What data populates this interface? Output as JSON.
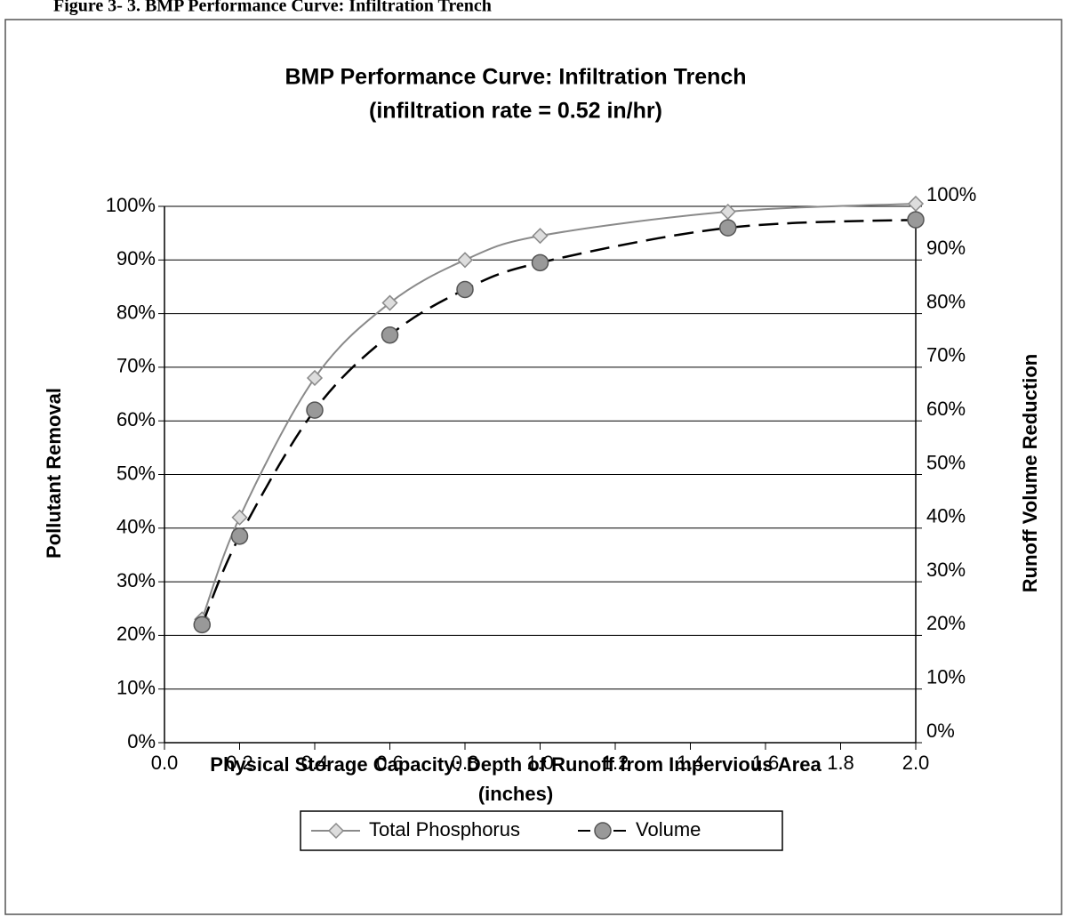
{
  "caption": "Figure 3- 3. BMP Performance Curve: Infiltration Trench",
  "chart_data": {
    "type": "line",
    "title": "BMP Performance Curve: Infiltration Trench",
    "subtitle": "(infiltration rate = 0.52 in/hr)",
    "x_label": "Physical Storage Capacity: Depth of Runoff from Impervious Area",
    "x_label_unit": "(inches)",
    "y_label": "Pollutant Removal",
    "y2_label": "Runoff Volume Reduction",
    "x": [
      0.1,
      0.2,
      0.4,
      0.6,
      0.8,
      1.0,
      1.5,
      2.0
    ],
    "series": [
      {
        "name": "Total Phosphorus",
        "color": "#8a8a8a",
        "marker": "diamond",
        "values": [
          23,
          42,
          68,
          82,
          90,
          94.5,
          99,
          100.5
        ]
      },
      {
        "name": "Volume",
        "color": "#7a7a7a",
        "marker": "circle",
        "dash": true,
        "axis": "y2",
        "values": [
          22,
          38.5,
          62,
          76,
          84.5,
          89.5,
          96,
          97.5
        ]
      }
    ],
    "xlim": [
      0,
      2
    ],
    "xticks": [
      {
        "value": 0,
        "label": "0.0"
      },
      0.2,
      0.4,
      0.6,
      0.8,
      {
        "value": 1,
        "label": "1.0"
      },
      1.2,
      1.4,
      1.6,
      1.8,
      {
        "value": 2,
        "label": "2.0"
      }
    ],
    "ylim": [
      0,
      100
    ],
    "yticks": [
      {
        "value": 0,
        "label": "0%"
      },
      {
        "value": 10,
        "label": "10%"
      },
      {
        "value": 20,
        "label": "20%"
      },
      {
        "value": 30,
        "label": "30%"
      },
      {
        "value": 40,
        "label": "40%"
      },
      {
        "value": 50,
        "label": "50%"
      },
      {
        "value": 60,
        "label": "60%"
      },
      {
        "value": 70,
        "label": "70%"
      },
      {
        "value": 80,
        "label": "80%"
      },
      {
        "value": 90,
        "label": "90%"
      },
      {
        "value": 100,
        "label": "100%"
      }
    ],
    "y2lim": [
      0,
      100
    ],
    "y2ticks": [
      {
        "value": 0,
        "label": "0%"
      },
      {
        "value": 10,
        "label": "10%"
      },
      {
        "value": 20,
        "label": "20%"
      },
      {
        "value": 30,
        "label": "30%"
      },
      {
        "value": 40,
        "label": "40%"
      },
      {
        "value": 50,
        "label": "50%"
      },
      {
        "value": 60,
        "label": "60%"
      },
      {
        "value": 70,
        "label": "70%"
      },
      {
        "value": 80,
        "label": "80%"
      },
      {
        "value": 90,
        "label": "90%"
      },
      {
        "value": 100,
        "label": "100%"
      }
    ],
    "grid": true,
    "legend": "bottom"
  }
}
